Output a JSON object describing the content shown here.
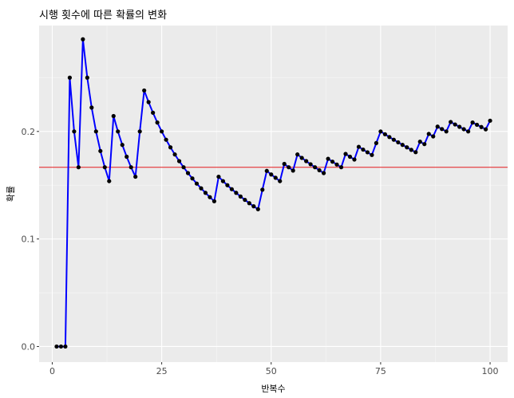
{
  "chart_data": {
    "type": "line",
    "title": "시행 횟수에 따른 확률의 변화",
    "xlabel": "반복수",
    "ylabel": "확률",
    "xlim": [
      -3,
      104
    ],
    "ylim": [
      -0.0145,
      0.2985
    ],
    "x_ticks": [
      0,
      25,
      50,
      75,
      100
    ],
    "x_tick_labels": [
      "0",
      "25",
      "50",
      "75",
      "100"
    ],
    "y_ticks": [
      0.0,
      0.1,
      0.2
    ],
    "y_tick_labels": [
      "0.0",
      "0.1",
      "0.2"
    ],
    "grid": true,
    "reference_line": {
      "y": 0.1667,
      "color": "#e41a1c"
    },
    "series": [
      {
        "color": "#0000ff",
        "marker_color": "#000000",
        "x": [
          1,
          2,
          3,
          4,
          5,
          6,
          7,
          8,
          9,
          10,
          11,
          12,
          13,
          14,
          15,
          16,
          17,
          18,
          19,
          20,
          21,
          22,
          23,
          24,
          25,
          26,
          27,
          28,
          29,
          30,
          31,
          32,
          33,
          34,
          35,
          36,
          37,
          38,
          39,
          40,
          41,
          42,
          43,
          44,
          45,
          46,
          47,
          48,
          49,
          50,
          51,
          52,
          53,
          54,
          55,
          56,
          57,
          58,
          59,
          60,
          61,
          62,
          63,
          64,
          65,
          66,
          67,
          68,
          69,
          70,
          71,
          72,
          73,
          74,
          75,
          76,
          77,
          78,
          79,
          80,
          81,
          82,
          83,
          84,
          85,
          86,
          87,
          88,
          89,
          90,
          91,
          92,
          93,
          94,
          95,
          96,
          97,
          98,
          99,
          100
        ],
        "values": [
          0,
          0,
          0,
          0.25,
          0.2,
          0.1667,
          0.2857,
          0.25,
          0.2222,
          0.2,
          0.1818,
          0.1667,
          0.1538,
          0.2143,
          0.2,
          0.1875,
          0.1765,
          0.1667,
          0.1579,
          0.2,
          0.2381,
          0.2273,
          0.2174,
          0.2083,
          0.2,
          0.1923,
          0.1852,
          0.1786,
          0.1724,
          0.1667,
          0.1613,
          0.1563,
          0.1515,
          0.1471,
          0.1429,
          0.1389,
          0.1351,
          0.1579,
          0.1538,
          0.15,
          0.1463,
          0.1429,
          0.1395,
          0.1364,
          0.1333,
          0.1304,
          0.1277,
          0.1458,
          0.1633,
          0.16,
          0.1569,
          0.1538,
          0.1698,
          0.1667,
          0.1636,
          0.1786,
          0.1754,
          0.1724,
          0.1695,
          0.1667,
          0.1639,
          0.1613,
          0.1746,
          0.1719,
          0.1692,
          0.1667,
          0.1791,
          0.1765,
          0.1739,
          0.1857,
          0.1831,
          0.1806,
          0.1781,
          0.1892,
          0.2,
          0.1974,
          0.1948,
          0.1923,
          0.1899,
          0.1875,
          0.1852,
          0.1829,
          0.1807,
          0.1905,
          0.1882,
          0.1977,
          0.1954,
          0.2045,
          0.2022,
          0.2,
          0.2088,
          0.2065,
          0.2043,
          0.2021,
          0.2,
          0.2083,
          0.2062,
          0.2041,
          0.202,
          0.21
        ]
      }
    ]
  }
}
